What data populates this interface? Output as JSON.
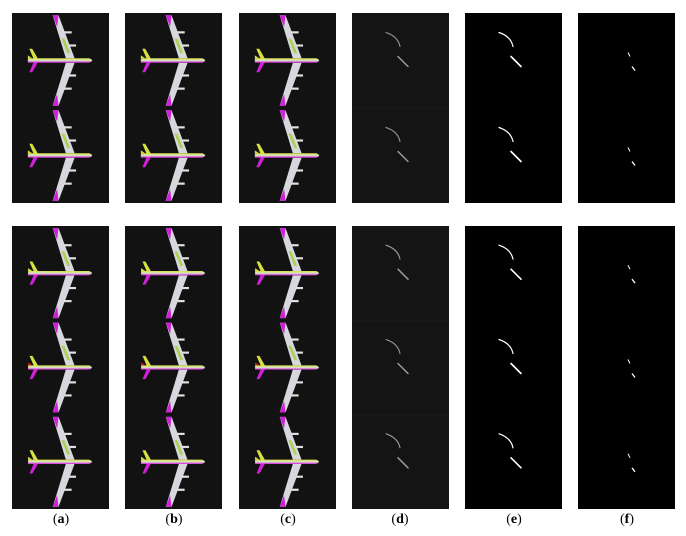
{
  "figure": {
    "columns": [
      {
        "letter": "a",
        "style": "color"
      },
      {
        "letter": "b",
        "style": "color"
      },
      {
        "letter": "c",
        "style": "color"
      },
      {
        "letter": "d",
        "style": "diff-dim"
      },
      {
        "letter": "e",
        "style": "diff-bright"
      },
      {
        "letter": "f",
        "style": "diff-sparse"
      }
    ],
    "rows": [
      {
        "planes": 2
      },
      {
        "planes": 3
      }
    ],
    "colors": {
      "panel_bg": "#121212",
      "diff_bg": "#000000",
      "fuselage": "#d8e6c8",
      "wing": "#e8e8f0",
      "yellow": "#d8e040",
      "magenta": "#d020d8",
      "green": "#a0d030",
      "red": "#d02020"
    }
  }
}
